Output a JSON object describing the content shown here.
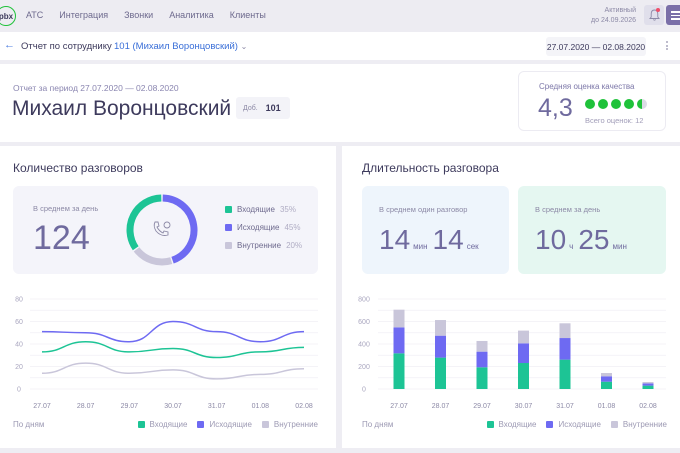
{
  "topnav": {
    "logo": "pbx",
    "items": [
      "АТС",
      "Интеграция",
      "Звонки",
      "Аналитика",
      "Клиенты"
    ],
    "status_line1": "Активный",
    "status_line2": "до 24.09.2026"
  },
  "subbar": {
    "back_icon": "arrow-left-icon",
    "title": "Отчет по сотруднику",
    "employee_selector": "101 (Михаил Воронцовский)",
    "date_range": "27.07.2020 — 02.08.2020"
  },
  "header": {
    "period": "Отчет за период 27.07.2020 — 02.08.2020",
    "name": "Михаил Воронцовский",
    "ext_label": "Доб.",
    "ext_value": "101",
    "rating": {
      "title": "Средняя оценка качества",
      "value": "4,3",
      "filled_dots": 4,
      "total_dots": 5,
      "count_label": "Всего оценок: 12"
    }
  },
  "calls_panel": {
    "title": "Количество разговоров",
    "avg_label": "В среднем за день",
    "avg_value": "124",
    "legend": [
      {
        "label": "Входящие",
        "pct": "35%",
        "color": "#1dc495"
      },
      {
        "label": "Исходящие",
        "pct": "45%",
        "color": "#6e6af2"
      },
      {
        "label": "Внутренние",
        "pct": "20%",
        "color": "#c9c6da"
      }
    ],
    "footer_label": "По дням"
  },
  "duration_panel": {
    "title": "Длительность разговора",
    "avg_call_label": "В среднем один разговор",
    "avg_call_min": "14",
    "avg_call_min_unit": "мин",
    "avg_call_sec": "14",
    "avg_call_sec_unit": "сек",
    "avg_day_label": "В среднем за день",
    "avg_day_h": "10",
    "avg_day_h_unit": "ч",
    "avg_day_min": "25",
    "avg_day_min_unit": "мин",
    "footer_label": "По дням"
  },
  "chart_legend": [
    "Входящие",
    "Исходящие",
    "Внутренние"
  ],
  "chart_data": [
    {
      "type": "pie",
      "title": "Количество разговоров",
      "categories": [
        "Входящие",
        "Исходящие",
        "Внутренние"
      ],
      "values": [
        35,
        45,
        20
      ]
    },
    {
      "type": "line",
      "title": "Количество разговоров по дням",
      "xlabel": "По дням",
      "categories": [
        "27.07",
        "28.07",
        "29.07",
        "30.07",
        "31.07",
        "01.08",
        "02.08"
      ],
      "ylim": [
        0,
        80
      ],
      "yticks": [
        0,
        20,
        40,
        60,
        80
      ],
      "series": [
        {
          "name": "Входящие",
          "values": [
            33,
            42,
            33,
            36,
            28,
            33,
            37
          ],
          "color": "#1dc495"
        },
        {
          "name": "Исходящие",
          "values": [
            51,
            50,
            42,
            60,
            51,
            42,
            51
          ],
          "color": "#6e6af2"
        },
        {
          "name": "Внутренние",
          "values": [
            14,
            23,
            14,
            17,
            9,
            13,
            18
          ],
          "color": "#c9c6da"
        }
      ]
    },
    {
      "type": "bar",
      "stacked": true,
      "title": "Длительность разговора по дням",
      "xlabel": "По дням",
      "categories": [
        "27.07",
        "28.07",
        "29.07",
        "30.07",
        "31.07",
        "01.08",
        "02.08"
      ],
      "ylim": [
        0,
        800
      ],
      "yticks": [
        0,
        200,
        400,
        600,
        800
      ],
      "series": [
        {
          "name": "Входящие",
          "values": [
            317,
            279,
            193,
            231,
            261,
            65,
            30
          ],
          "color": "#1dc495"
        },
        {
          "name": "Исходящие",
          "values": [
            231,
            195,
            139,
            175,
            192,
            48,
            20
          ],
          "color": "#6e6af2"
        },
        {
          "name": "Внутренние",
          "values": [
            157,
            139,
            95,
            113,
            131,
            29,
            12
          ],
          "color": "#c9c6da"
        }
      ]
    }
  ]
}
